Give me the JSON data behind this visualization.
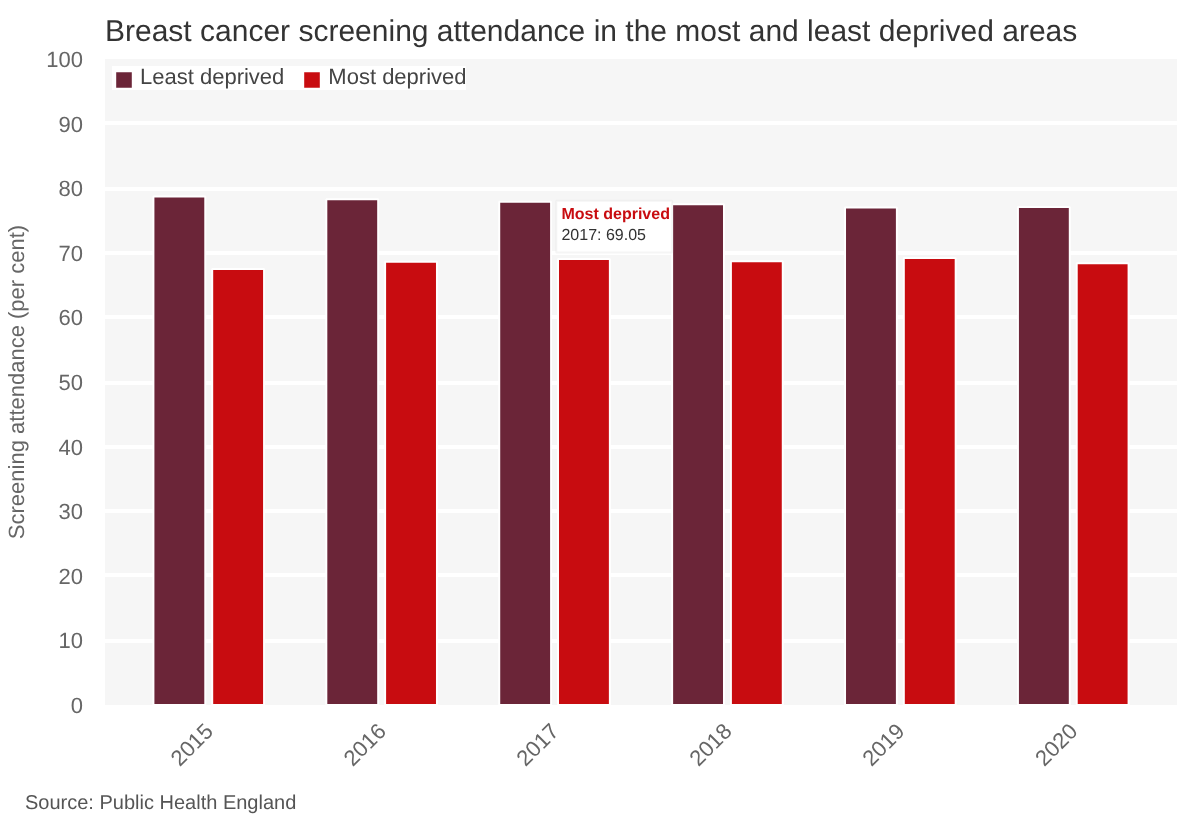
{
  "chart_data": {
    "type": "bar",
    "title": "Breast cancer screening attendance in the most and least deprived areas",
    "ylabel": "Screening attendance (per cent)",
    "categories": [
      "2015",
      "2016",
      "2017",
      "2018",
      "2019",
      "2020"
    ],
    "series": [
      {
        "name": "Least deprived",
        "color": "#6b2538",
        "values": [
          78.7,
          78.3,
          77.9,
          77.5,
          77.0,
          77.1
        ]
      },
      {
        "name": "Most deprived",
        "color": "#c80c10",
        "values": [
          67.5,
          68.6,
          69.05,
          68.7,
          69.2,
          68.4
        ]
      }
    ],
    "ylim": [
      0,
      100
    ],
    "yticks": [
      0,
      10,
      20,
      30,
      40,
      50,
      60,
      70,
      80,
      90,
      100
    ],
    "grid": "y",
    "legend": "top left",
    "annotations": [
      {
        "text": "Most deprived\n2017: 69.05",
        "x": "2017",
        "y": 69.05
      },
      "Source: Public Health England"
    ]
  }
}
